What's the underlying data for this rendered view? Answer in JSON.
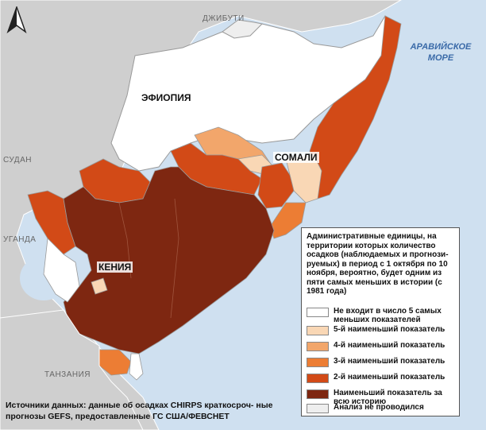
{
  "labels": {
    "djibouti": "ДЖИБУТИ",
    "ethiopia": "ЭФИОПИЯ",
    "somalia": "СОМАЛИ",
    "sudan": "СУДАН",
    "uganda": "УГАНДА",
    "kenya": "КЕНИЯ",
    "tanzania": "ТАНЗАНИЯ",
    "sea_line1": "АРАВИЙСКОЕ",
    "sea_line2": "МОРЕ"
  },
  "legend": {
    "title": "Административные единицы, на территории которых количество осадков (наблюдаемых и прогнози- руемых) в период с 1 октября по 10 ноября, вероятно, будет одним из пяти самых меньших в истории (с 1981 года)",
    "items": [
      {
        "label": "Не входит в число 5 самых меньших показателей",
        "color": "#ffffff"
      },
      {
        "label": "5-й наименьший показатель",
        "color": "#f9d7b5"
      },
      {
        "label": "4-й наименьший показатель",
        "color": "#f2a66b"
      },
      {
        "label": "3-й наименьший показатель",
        "color": "#ec7d34"
      },
      {
        "label": "2-й наименьший показатель",
        "color": "#d24a17"
      },
      {
        "label": "Наименьший показатель за всю историю",
        "color": "#7e2711"
      },
      {
        "label": "Анализ не проводился",
        "color": "#eeeeee"
      }
    ]
  },
  "source": "Источники данных: данные об осадках CHIRPS краткосроч- ные прогнозы GEFS, предоставленные ГС США/ФЕВСНЕТ",
  "colors": {
    "sea": "#cfe0f0",
    "land_outside": "#cfcfcf",
    "not_top5": "#ffffff",
    "rank5": "#f9d7b5",
    "rank4": "#f2a66b",
    "rank3": "#ec7d34",
    "rank2": "#d24a17",
    "rank1": "#7e2711",
    "not_analysed": "#eeeeee"
  },
  "north_arrow": "north-arrow-icon"
}
